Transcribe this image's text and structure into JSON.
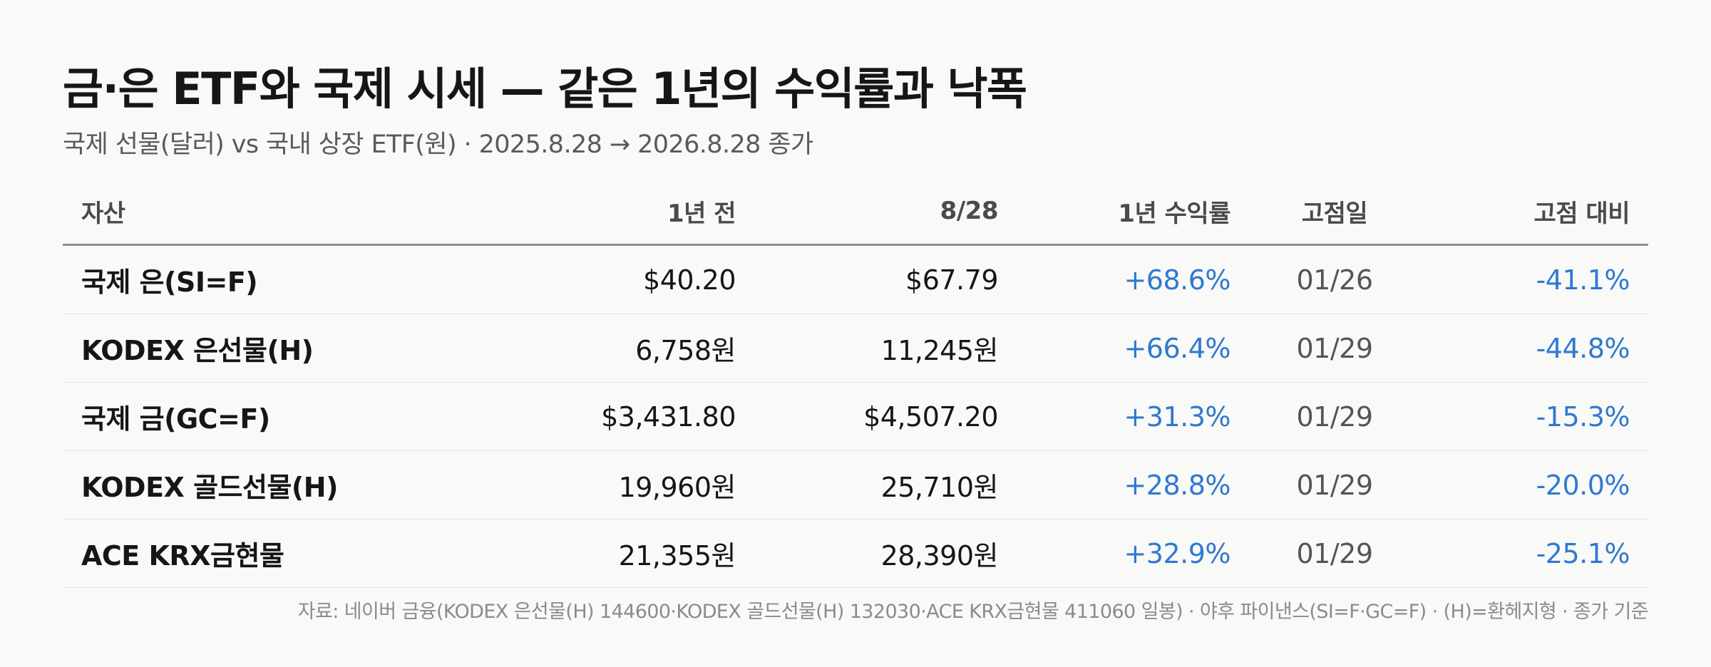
{
  "title": "금·은 ETF와 국제 시세 — 같은 1년의 수익률과 낙폭",
  "subtitle": "국제 선물(달러) vs 국내 상장 ETF(원) · 2025.8.28 → 2026.8.28 종가",
  "table": {
    "headers": {
      "asset": "자산",
      "year_ago": "1년 전",
      "current": "8/28",
      "return_1y": "1년 수익률",
      "peak_date": "고점일",
      "vs_peak": "고점 대비"
    },
    "rows": [
      {
        "asset": "국제 은(SI=F)",
        "year_ago": "$40.20",
        "current": "$67.79",
        "return_1y": "+68.6%",
        "peak_date": "01/26",
        "vs_peak": "-41.1%"
      },
      {
        "asset": "KODEX 은선물(H)",
        "year_ago": "6,758원",
        "current": "11,245원",
        "return_1y": "+66.4%",
        "peak_date": "01/29",
        "vs_peak": "-44.8%"
      },
      {
        "asset": "국제 금(GC=F)",
        "year_ago": "$3,431.80",
        "current": "$4,507.20",
        "return_1y": "+31.3%",
        "peak_date": "01/29",
        "vs_peak": "-15.3%"
      },
      {
        "asset": "KODEX 골드선물(H)",
        "year_ago": "19,960원",
        "current": "25,710원",
        "return_1y": "+28.8%",
        "peak_date": "01/29",
        "vs_peak": "-20.0%"
      },
      {
        "asset": "ACE KRX금현물",
        "year_ago": "21,355원",
        "current": "28,390원",
        "return_1y": "+32.9%",
        "peak_date": "01/29",
        "vs_peak": "-25.1%"
      }
    ]
  },
  "footnote": "자료: 네이버 금융(KODEX 은선물(H) 144600·KODEX 골드선물(H) 132030·ACE KRX금현물 411060 일봉) · 야후 파이낸스(SI=F·GC=F) · (H)=환헤지형 · 종가 기준",
  "colors": {
    "positive_return": "#2f79d0",
    "drawdown": "#2f79d0",
    "header_rule": "#8e8e8e"
  }
}
